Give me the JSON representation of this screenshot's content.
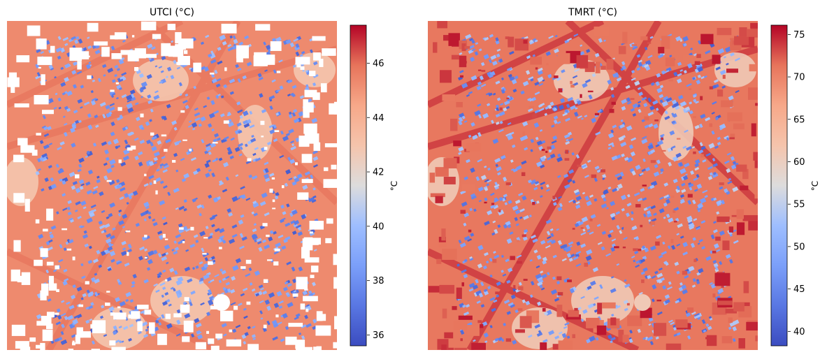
{
  "chart_data": [
    {
      "type": "heatmap",
      "title": "UTCI (°C)",
      "colorbar_label": "°C",
      "colormap": "coolwarm",
      "value_range": [
        35.6,
        47.4
      ],
      "colorbar_ticks": [
        36,
        38,
        40,
        42,
        44,
        46
      ],
      "background_value": 45.3,
      "masked_color": "#ffffff",
      "features": {
        "buildings": "white (masked)",
        "vegetation": "blue (cool)",
        "open_ground": "pale orange",
        "roads": "orange-red"
      }
    },
    {
      "type": "heatmap",
      "title": "TMRT (°C)",
      "colorbar_label": "°C",
      "colormap": "coolwarm",
      "value_range": [
        38.3,
        76.1
      ],
      "colorbar_ticks": [
        40,
        45,
        50,
        55,
        60,
        65,
        70,
        75
      ],
      "background_value": 71,
      "features": {
        "buildings": "dark red roofs",
        "vegetation": "blue (cool)",
        "open_ground": "pale orange",
        "roads": "red"
      }
    }
  ]
}
